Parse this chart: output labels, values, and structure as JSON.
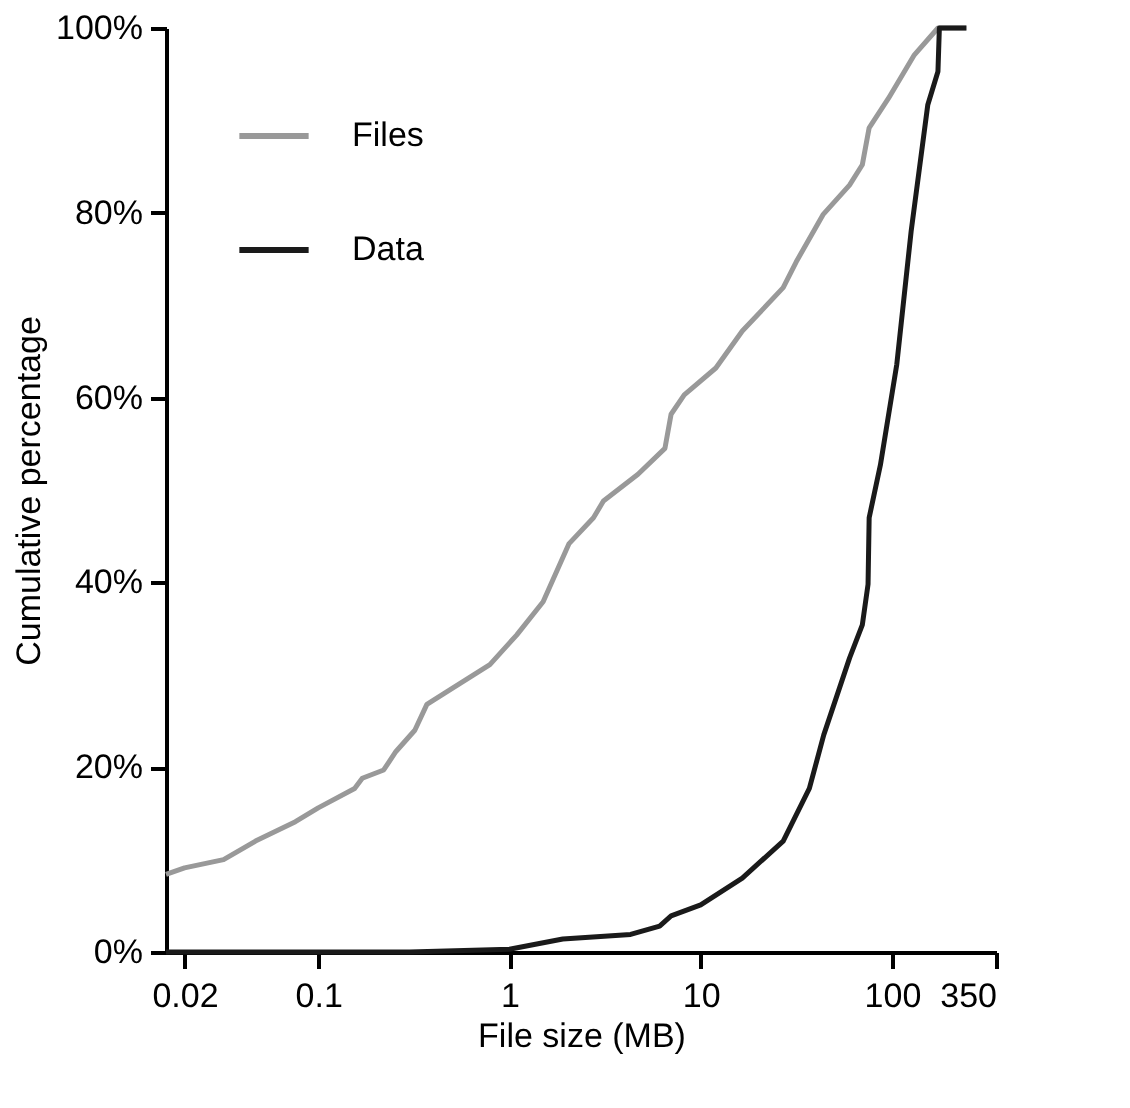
{
  "chart_data": {
    "type": "line",
    "xlabel": "File size (MB)",
    "ylabel": "Cumulative percentage",
    "log": "x",
    "xlim": [
      0.016,
      350
    ],
    "xticks": [
      0.02,
      0.1,
      1,
      10,
      100,
      350
    ],
    "ylim": [
      0,
      100
    ],
    "yticks": [
      {
        "value": 0,
        "label": "0%"
      },
      {
        "value": 20,
        "label": "20%"
      },
      {
        "value": 40,
        "label": "40%"
      },
      {
        "value": 60,
        "label": "60%"
      },
      {
        "value": 80,
        "label": "80%"
      },
      {
        "value": 100,
        "label": "100%"
      }
    ],
    "grid": false,
    "legend": "top left",
    "marker": "none",
    "line_style": "solid",
    "series": [
      {
        "name": "Files",
        "color": "#999999",
        "x": [
          0.016,
          0.02,
          0.032,
          0.047,
          0.076,
          0.1,
          0.155,
          0.17,
          0.22,
          0.255,
          0.32,
          0.37,
          0.49,
          0.79,
          1.09,
          1.5,
          2.05,
          2.75,
          3.1,
          4.7,
          6.5,
          7.0,
          8.2,
          12,
          16.5,
          27,
          31.6,
          43.6,
          60,
          70,
          76,
          96,
          131,
          174,
          245
        ],
        "values": [
          8.4,
          9.1,
          10,
          12,
          14.1,
          15.6,
          17.7,
          18.8,
          19.7,
          21.7,
          24,
          26.8,
          28.4,
          31.1,
          34.3,
          37.9,
          44.2,
          47,
          48.8,
          51.7,
          54.5,
          58.2,
          60.3,
          63.2,
          67.2,
          71.9,
          74.7,
          79.8,
          83,
          85.2,
          89.2,
          92.4,
          97.1,
          100,
          100
        ]
      },
      {
        "name": "Data",
        "color": "#1a1a1a",
        "x": [
          0.016,
          0.3,
          1,
          1.9,
          4.3,
          6.1,
          7.0,
          10,
          16.5,
          27,
          37,
          44,
          60,
          70,
          75,
          76,
          87,
          106,
          126,
          154,
          174,
          177,
          245
        ],
        "values": [
          0,
          0,
          0.3,
          1.4,
          1.9,
          2.8,
          3.9,
          5.1,
          8,
          12,
          17.7,
          23.5,
          31.8,
          35.4,
          39.8,
          47,
          52.7,
          63.6,
          78,
          91.7,
          95.3,
          100,
          100
        ]
      }
    ]
  }
}
